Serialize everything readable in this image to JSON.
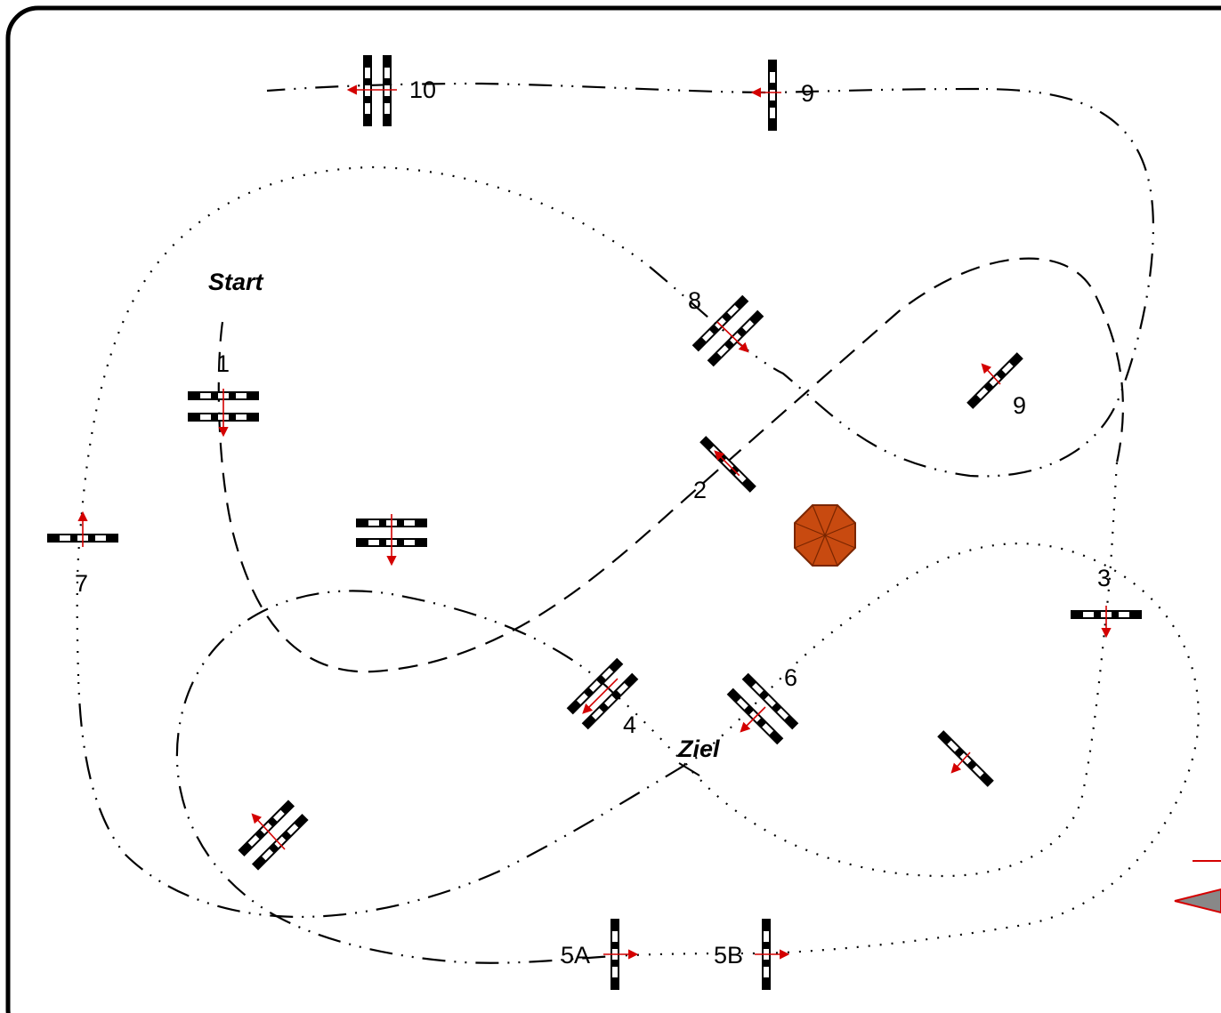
{
  "title": "",
  "labels": {
    "start": "Start",
    "finish": "Ziel",
    "j1": "1",
    "j2": "2",
    "j3": "3",
    "j4": "4",
    "j5a": "5A",
    "j5b": "5B",
    "j6": "6",
    "j7": "7",
    "j8": "8",
    "j9_top": "9",
    "j9_right": "9",
    "j10": "10"
  },
  "colors": {
    "border": "#000000",
    "arrow": "#d40000",
    "pole_dark": "#000000",
    "pole_light": "#ffffff",
    "octagon_fill": "#c84a10",
    "octagon_stroke": "#7a2600",
    "legend_gray": "#888888"
  },
  "icons": {
    "obstacle": "show-jump-obstacle-icon",
    "direction": "jump-direction-arrow-icon",
    "umbrella": "octagon-umbrella-icon",
    "legend_arrow": "legend-direction-arrow-icon"
  }
}
